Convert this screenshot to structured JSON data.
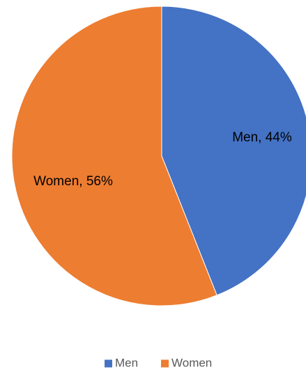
{
  "chart_data": {
    "type": "pie",
    "title": "",
    "categories": [
      "Men",
      "Women"
    ],
    "values": [
      44,
      56
    ],
    "data_labels": [
      "Men, 44%",
      "Women, 56%"
    ],
    "colors": [
      "#4472C4",
      "#ED7D31"
    ],
    "start_angle": "12 o'clock",
    "direction": "clockwise",
    "legend": {
      "position": "bottom",
      "items": [
        "Men",
        "Women"
      ]
    }
  }
}
